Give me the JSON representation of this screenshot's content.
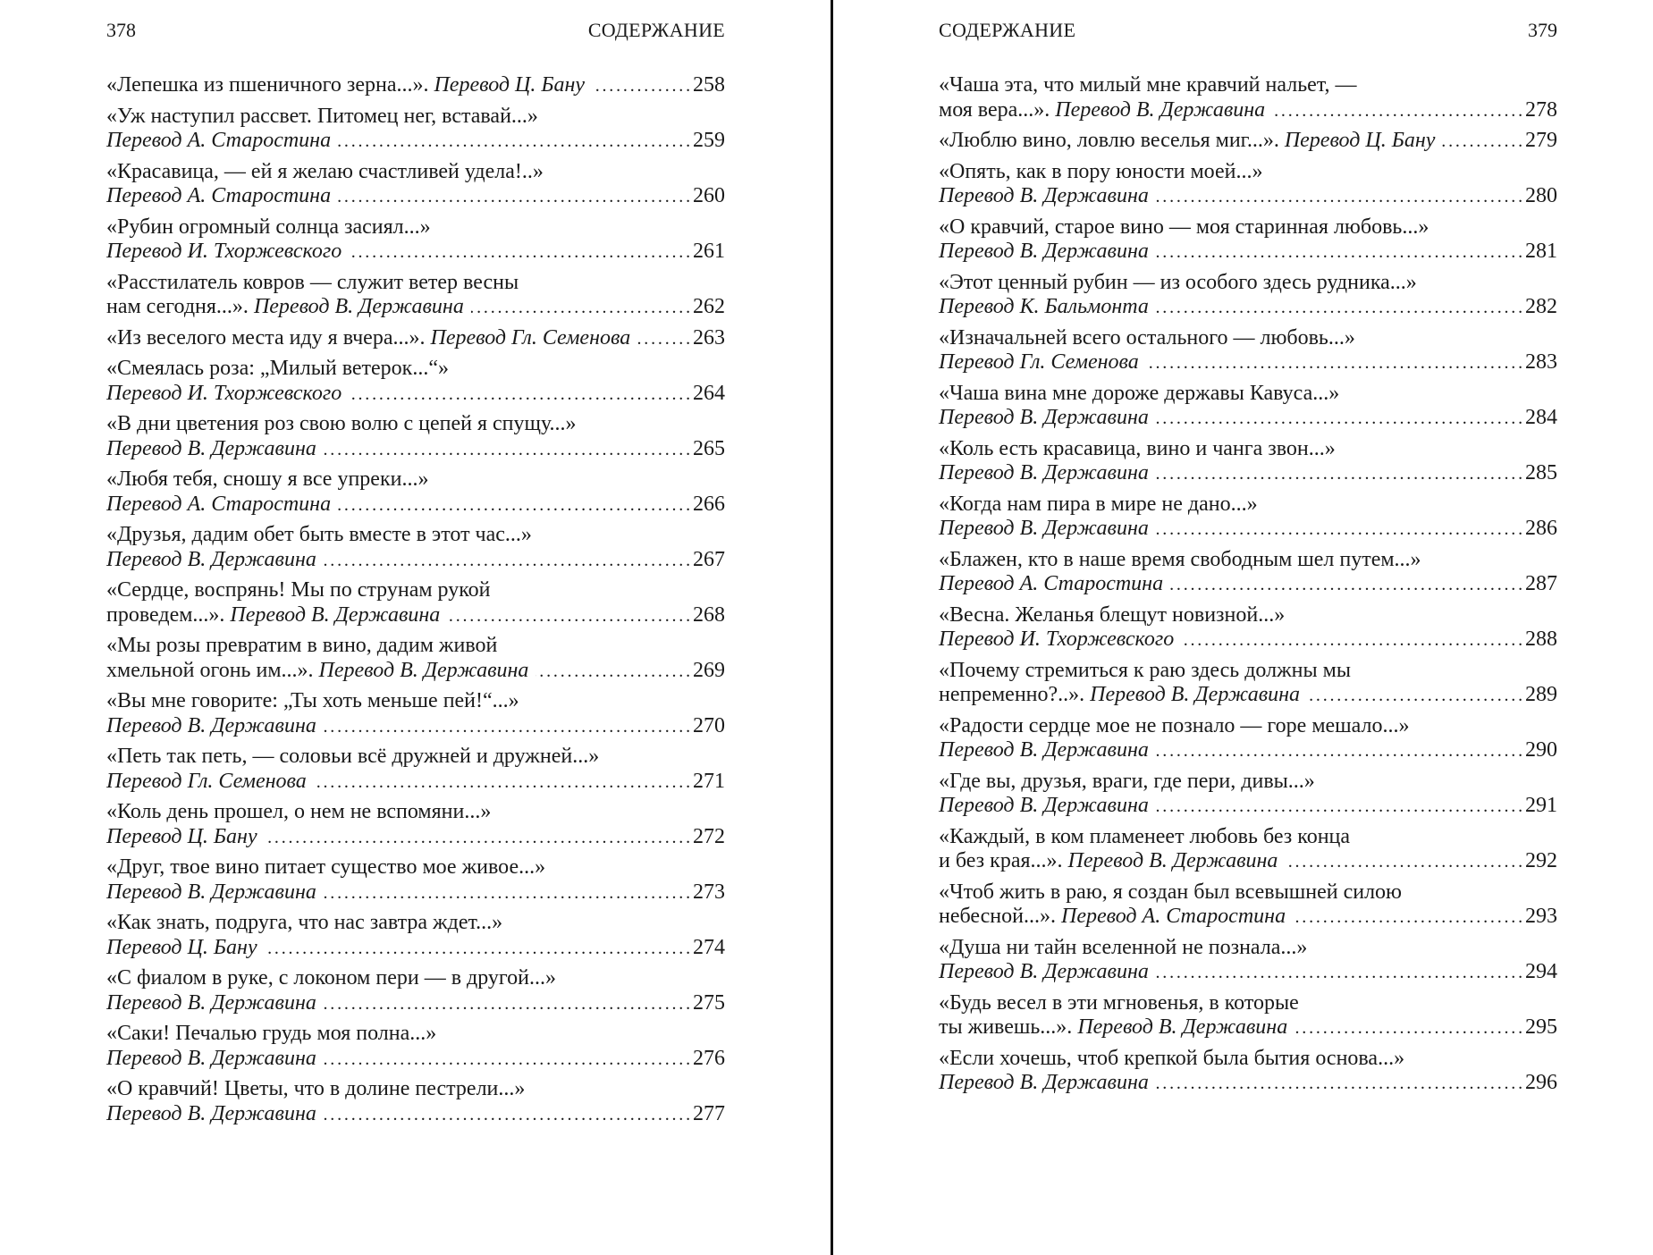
{
  "left_page": {
    "page_number": "378",
    "running_head": "СОДЕРЖАНИЕ",
    "entries": [
      {
        "lines": [],
        "last_plain": "«Лепешка из пшеничного зерна...». ",
        "translator": "Перевод Ц. Бану",
        "page": "258"
      },
      {
        "lines": [
          "«Уж наступил рассвет. Питомец нег, вставай...»"
        ],
        "last_plain": "",
        "translator": "Перевод А. Старостина",
        "page": "259"
      },
      {
        "lines": [
          "«Красавица, — ей я желаю счастливей удела!..»"
        ],
        "last_plain": "",
        "translator": "Перевод А. Старостина",
        "page": "260"
      },
      {
        "lines": [
          "«Рубин огромный солнца засиял...»"
        ],
        "last_plain": "",
        "translator": "Перевод И. Тхоржевского",
        "page": "261"
      },
      {
        "lines": [
          "«Расстилатель ковров — служит ветер весны"
        ],
        "last_plain": "нам сегодня...». ",
        "translator": "Перевод В. Державина",
        "page": "262"
      },
      {
        "lines": [],
        "last_plain": "«Из веселого места иду я вчера...». ",
        "translator": "Перевод Гл. Семенова",
        "page": "263"
      },
      {
        "lines": [
          "«Смеялась роза: „Милый ветерок...“»"
        ],
        "last_plain": "",
        "translator": "Перевод И. Тхоржевского",
        "page": "264"
      },
      {
        "lines": [
          "«В дни цветения роз свою волю с цепей я спущу...»"
        ],
        "last_plain": "",
        "translator": "Перевод В. Державина",
        "page": "265"
      },
      {
        "lines": [
          "«Любя тебя, сношу я все упреки...»"
        ],
        "last_plain": "",
        "translator": "Перевод А. Старостина",
        "page": "266"
      },
      {
        "lines": [
          "«Друзья, дадим обет быть вместе в этот час...»"
        ],
        "last_plain": "",
        "translator": "Перевод В. Державина",
        "page": "267"
      },
      {
        "lines": [
          "«Сердце, воспрянь! Мы по струнам рукой"
        ],
        "last_plain": "проведем...». ",
        "translator": "Перевод В. Державина",
        "page": "268"
      },
      {
        "lines": [
          "«Мы розы превратим в вино, дадим живой"
        ],
        "last_plain": "хмельной огонь им...». ",
        "translator": "Перевод В. Державина",
        "page": "269"
      },
      {
        "lines": [
          "«Вы мне говорите: „Ты хоть меньше пей!“...»"
        ],
        "last_plain": "",
        "translator": "Перевод В. Державина",
        "page": "270"
      },
      {
        "lines": [
          "«Петь так петь, — соловьи всё дружней и дружней...»"
        ],
        "last_plain": "",
        "translator": "Перевод Гл. Семенова",
        "page": "271"
      },
      {
        "lines": [
          "«Коль день прошел, о нем не вспомяни...»"
        ],
        "last_plain": "",
        "translator": "Перевод Ц. Бану",
        "page": "272"
      },
      {
        "lines": [
          "«Друг, твое вино питает существо мое живое...»"
        ],
        "last_plain": "",
        "translator": "Перевод В. Державина",
        "page": "273"
      },
      {
        "lines": [
          "«Как знать, подруга, что нас завтра ждет...»"
        ],
        "last_plain": "",
        "translator": "Перевод Ц. Бану",
        "page": "274"
      },
      {
        "lines": [
          "«С фиалом в руке, с локоном пери — в другой...»"
        ],
        "last_plain": "",
        "translator": "Перевод В. Державина",
        "page": "275"
      },
      {
        "lines": [
          "«Саки! Печалью грудь моя полна...»"
        ],
        "last_plain": "",
        "translator": "Перевод В. Державина",
        "page": "276"
      },
      {
        "lines": [
          "«О кравчий! Цветы, что в долине пестрели...»"
        ],
        "last_plain": "",
        "translator": "Перевод В. Державина",
        "page": "277"
      }
    ]
  },
  "right_page": {
    "page_number": "379",
    "running_head": "СОДЕРЖАНИЕ",
    "entries": [
      {
        "lines": [
          "«Чаша эта, что милый мне кравчий нальет, —"
        ],
        "last_plain": "моя вера...». ",
        "translator": "Перевод В. Державина",
        "page": "278"
      },
      {
        "lines": [],
        "last_plain": "«Люблю вино, ловлю веселья миг...». ",
        "translator": "Перевод Ц. Бану",
        "page": "279"
      },
      {
        "lines": [
          "«Опять, как в пору юности моей...»"
        ],
        "last_plain": "",
        "translator": "Перевод В. Державина",
        "page": "280"
      },
      {
        "lines": [
          "«О кравчий, старое вино — моя старинная любовь...»"
        ],
        "last_plain": "",
        "translator": "Перевод В. Державина",
        "page": "281"
      },
      {
        "lines": [
          "«Этот ценный рубин — из особого здесь рудника...»"
        ],
        "last_plain": "",
        "translator": "Перевод К. Бальмонта",
        "page": "282"
      },
      {
        "lines": [
          "«Изначальней всего остального — любовь...»"
        ],
        "last_plain": "",
        "translator": "Перевод Гл. Семенова",
        "page": "283"
      },
      {
        "lines": [
          "«Чаша вина мне дороже державы Кавуса...»"
        ],
        "last_plain": "",
        "translator": "Перевод В. Державина",
        "page": "284"
      },
      {
        "lines": [
          "«Коль есть красавица, вино и чанга звон...»"
        ],
        "last_plain": "",
        "translator": "Перевод В. Державина",
        "page": "285"
      },
      {
        "lines": [
          "«Когда нам пира в мире не дано...»"
        ],
        "last_plain": "",
        "translator": "Перевод В. Державина",
        "page": "286"
      },
      {
        "lines": [
          "«Блажен, кто в наше время свободным шел путем...»"
        ],
        "last_plain": "",
        "translator": "Перевод А. Старостина",
        "page": "287"
      },
      {
        "lines": [
          "«Весна. Желанья блещут новизной...»"
        ],
        "last_plain": "",
        "translator": "Перевод И. Тхоржевского",
        "page": "288"
      },
      {
        "lines": [
          "«Почему стремиться к раю здесь должны мы"
        ],
        "last_plain": "непременно?..». ",
        "translator": "Перевод В. Державина",
        "page": "289"
      },
      {
        "lines": [
          "«Радости сердце мое не познало — горе мешало...»"
        ],
        "last_plain": "",
        "translator": "Перевод В. Державина",
        "page": "290"
      },
      {
        "lines": [
          "«Где вы, друзья, враги, где пери, дивы...»"
        ],
        "last_plain": "",
        "translator": "Перевод В. Державина",
        "page": "291"
      },
      {
        "lines": [
          "«Каждый, в ком пламенеет любовь без конца"
        ],
        "last_plain": "и без края...». ",
        "translator": "Перевод В. Державина",
        "page": "292"
      },
      {
        "lines": [
          "«Чтоб жить в раю, я создан был всевышней силою"
        ],
        "last_plain": "небесной...». ",
        "translator": "Перевод А. Старостина",
        "page": "293"
      },
      {
        "lines": [
          "«Душа ни тайн вселенной не познала...»"
        ],
        "last_plain": "",
        "translator": "Перевод В. Державина",
        "page": "294"
      },
      {
        "lines": [
          "«Будь весел в эти мгновенья, в которые"
        ],
        "last_plain": "ты живешь...». ",
        "translator": "Перевод В. Державина",
        "page": "295"
      },
      {
        "lines": [
          "«Если хочешь, чтоб крепкой была бытия основа...»"
        ],
        "last_plain": "",
        "translator": "Перевод В. Державина",
        "page": "296"
      }
    ]
  }
}
